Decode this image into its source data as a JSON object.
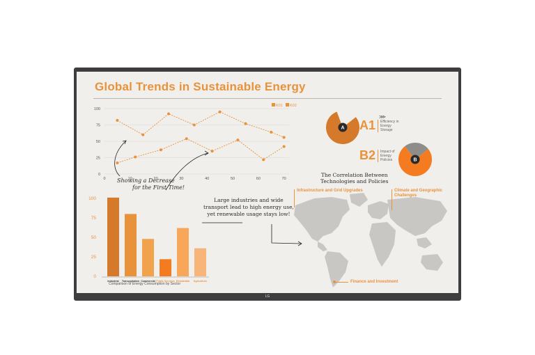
{
  "screen": {
    "title": "Global Trends in Sustainable Energy",
    "brand": "LG"
  },
  "line_chart": {
    "legend": [
      {
        "label": "K01",
        "color": "#e8923c"
      },
      {
        "label": "K02",
        "color": "#e8923c"
      }
    ],
    "y_ticks": [
      "0",
      "25",
      "50",
      "75",
      "100"
    ],
    "x_ticks": [
      "0",
      "10",
      "20",
      "30",
      "40",
      "50",
      "60",
      "70"
    ],
    "annotation_line1": "Showing a Decrease",
    "annotation_line2": "for the First Time!"
  },
  "bar_chart": {
    "y_ticks": [
      "0",
      "25",
      "50",
      "75",
      "100"
    ],
    "categories": [
      "Industrial",
      "Transportation",
      "Commercial",
      "Public Services",
      "Residential",
      "Agriculture"
    ],
    "caption": "Comparison of Energy Consumption by Sector"
  },
  "kpis": {
    "a1": {
      "code": "A1",
      "badge": "A",
      "line1": "Efficiency in",
      "line2": "Energy",
      "line3": "Storage",
      "arrows": "⋙"
    },
    "b2": {
      "code": "B2",
      "badge": "B",
      "line1": "Impact of",
      "line2": "Energy",
      "line3": "Policies"
    }
  },
  "map": {
    "heading_line1": "The Correlation Between",
    "heading_line2": "Technologies and Policies",
    "label_infrastructure": "Infrastructure and Grid Upgrades",
    "label_climate_line1": "Climate and Geographic",
    "label_climate_line2": "Challenges",
    "label_finance": "Finance and Investment",
    "note_line1": "Large industries and wide",
    "note_line2": "transport lead to high energy use,",
    "note_line3": "yet renewable usage stays low!"
  },
  "colors": {
    "accent": "#e8923c",
    "dark_orange": "#d47a2a",
    "bright_orange": "#f47b20",
    "map_gray": "#c9c7c4"
  },
  "chart_data": [
    {
      "type": "line",
      "title": "",
      "legend_position": "top-right",
      "x": [
        5,
        10,
        15,
        20,
        25,
        30,
        35,
        40,
        45,
        50,
        55,
        60,
        65,
        70
      ],
      "xlim": [
        0,
        72
      ],
      "ylim": [
        0,
        100
      ],
      "grid": true,
      "series": [
        {
          "name": "K01",
          "x": [
            5,
            15,
            25,
            35,
            45,
            55,
            65,
            70
          ],
          "values": [
            82,
            60,
            92,
            75,
            95,
            77,
            64,
            56
          ]
        },
        {
          "name": "K02",
          "x": [
            5,
            12,
            22,
            32,
            42,
            52,
            62,
            70
          ],
          "values": [
            17,
            26,
            37,
            54,
            35,
            52,
            22,
            42
          ]
        }
      ]
    },
    {
      "type": "bar",
      "title": "Comparison of Energy Consumption by Sector",
      "categories": [
        "Industrial",
        "Transportation",
        "Commercial",
        "Public Services",
        "Residential",
        "Agriculture"
      ],
      "values": [
        101,
        80,
        48,
        22,
        62,
        36
      ],
      "colors": [
        "#d47a2a",
        "#e8923c",
        "#f0a24d",
        "#f47b20",
        "#f8a65a",
        "#f8b57a"
      ],
      "ylim": [
        0,
        100
      ]
    },
    {
      "type": "pie",
      "title": "A1",
      "values": [
        80,
        20
      ],
      "colors": [
        "#d47a2a",
        "#f1efec"
      ]
    },
    {
      "type": "pie",
      "title": "B2",
      "values": [
        75,
        25
      ],
      "colors": [
        "#f47b20",
        "#8f8d8a"
      ]
    }
  ]
}
